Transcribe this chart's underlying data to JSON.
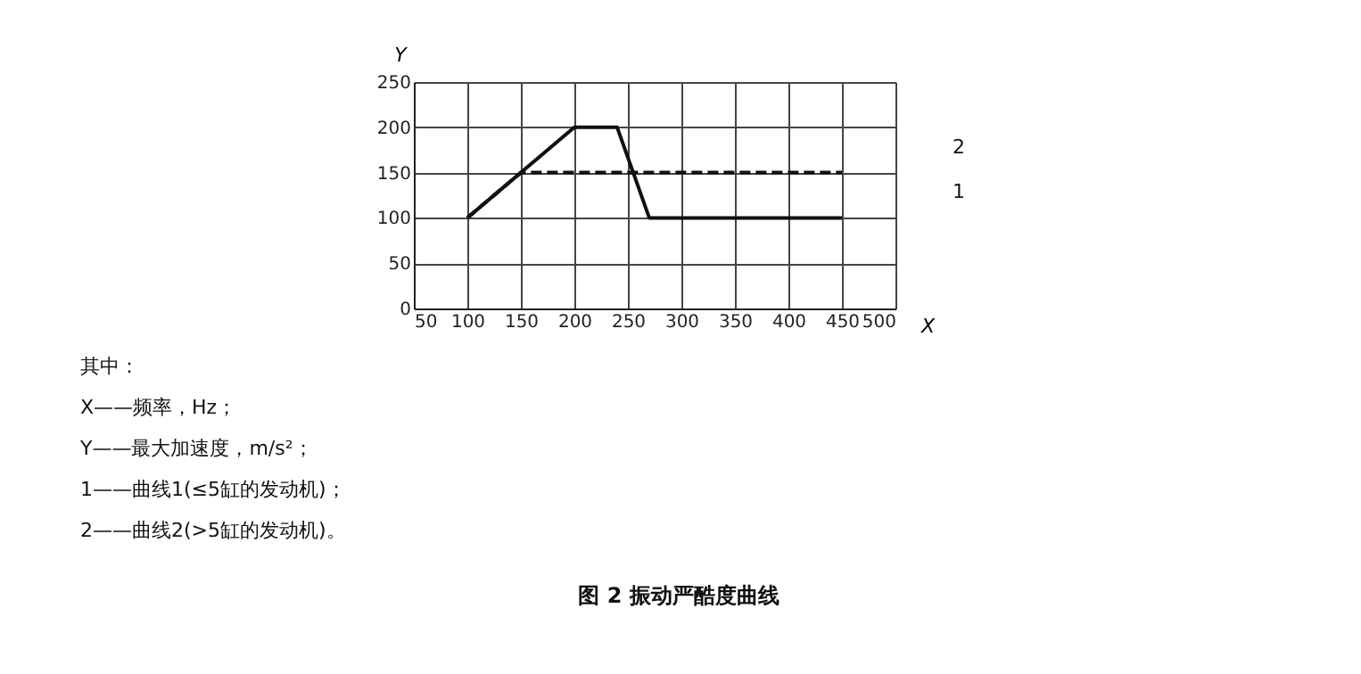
{
  "chart_data": {
    "type": "line",
    "title": "图 2  振动严酷度曲线",
    "xlabel": "X",
    "ylabel": "Y",
    "xlim": [
      50,
      500
    ],
    "xticks": [
      50,
      100,
      150,
      200,
      250,
      300,
      350,
      400,
      450,
      500
    ],
    "ylim": [
      0,
      250
    ],
    "yticks": [
      0,
      50,
      100,
      150,
      200,
      250
    ],
    "grid": true,
    "legend": false,
    "marker": "none",
    "series": [
      {
        "name": "1",
        "color": "#111111",
        "line_style": "solid",
        "x": [
          100,
          200,
          240,
          270,
          450
        ],
        "values": [
          100,
          200,
          200,
          100,
          100
        ]
      },
      {
        "name": "2",
        "color": "#111111",
        "line_style": "dashed",
        "x": [
          100,
          150,
          450
        ],
        "values": [
          100,
          150,
          150
        ]
      }
    ],
    "annotations": [
      "其中：",
      "X——频率，Hz；",
      "Y——最大加速度，m/s²；",
      "1——曲线1(≤5缸的发动机)；",
      "2——曲线2(>5缸的发动机)。"
    ]
  }
}
